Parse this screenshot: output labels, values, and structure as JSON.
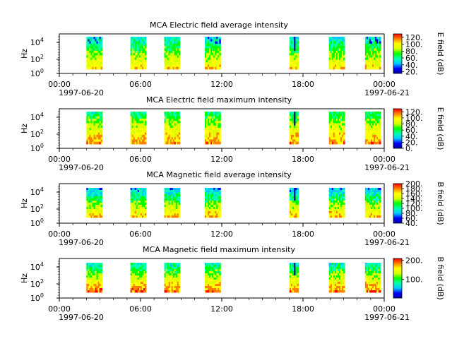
{
  "figure": {
    "time_axis": {
      "tick_labels": [
        "00:00",
        "06:00",
        "12:00",
        "18:00",
        "00:00"
      ],
      "tick_hours": [
        0,
        6,
        12,
        18,
        24
      ],
      "range_hours": [
        0,
        24
      ],
      "start_date": "1997-06-20",
      "end_date": "1997-06-21"
    },
    "data_segments_utc": [
      [
        "02:00",
        "03:10"
      ],
      [
        "05:15",
        "06:25"
      ],
      [
        "07:45",
        "08:55"
      ],
      [
        "10:45",
        "11:55"
      ],
      [
        "17:00",
        "17:40"
      ],
      [
        "19:55",
        "21:05"
      ],
      [
        "22:35",
        "23:45"
      ]
    ],
    "freq_axis": {
      "ylabel": "Hz",
      "scale": "log",
      "tick_labels": [
        {
          "base": "10",
          "exp": "0"
        },
        {
          "base": "10",
          "exp": "2"
        },
        {
          "base": "10",
          "exp": "4"
        }
      ]
    },
    "colormap": [
      "#0000a0",
      "#0000ff",
      "#00c8ff",
      "#00ffb0",
      "#00ff00",
      "#d8ff00",
      "#ffff00",
      "#ff8000",
      "#ff0000"
    ]
  },
  "chart_data": [
    {
      "type": "heatmap",
      "title": "MCA  Electric field average intensity",
      "ylabel": "Hz",
      "colorbar_label": "E field (dB)",
      "colorbar_ticks": [
        "20.",
        "40.",
        "60.",
        "80.",
        "100.",
        "120."
      ],
      "colorbar_range": [
        15,
        130
      ]
    },
    {
      "type": "heatmap",
      "title": "MCA  Electric field maximum intensity",
      "ylabel": "Hz",
      "colorbar_label": "E field (dB)",
      "colorbar_ticks": [
        "0.",
        "20.",
        "40.",
        "60.",
        "80.",
        "100.",
        "120."
      ],
      "colorbar_range": [
        0,
        130
      ]
    },
    {
      "type": "heatmap",
      "title": "MCA  Magnetic field average intensity",
      "ylabel": "Hz",
      "colorbar_label": "B field (dB)",
      "colorbar_ticks": [
        "40.",
        "60.",
        "80.",
        "100.",
        "120.",
        "140.",
        "160.",
        "180.",
        "200."
      ],
      "colorbar_range": [
        40,
        200
      ]
    },
    {
      "type": "heatmap",
      "title": "MCA  Magnetic field maximum intensity",
      "ylabel": "Hz",
      "colorbar_label": "B field (dB)",
      "colorbar_ticks": [
        "100.",
        "200."
      ],
      "colorbar_range": [
        0,
        210
      ]
    }
  ]
}
